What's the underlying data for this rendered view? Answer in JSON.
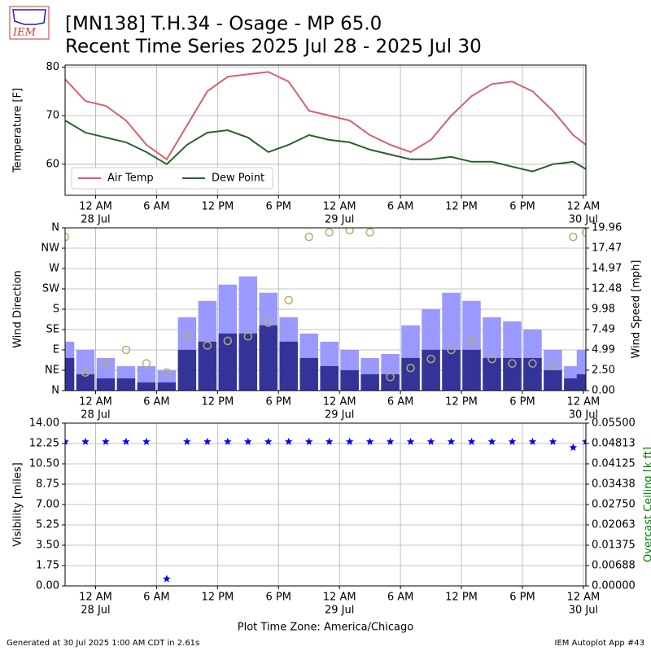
{
  "header": {
    "logo": "IEM",
    "title": [
      "[MN138] T.H.34 - Osage - MP 65.0",
      "Recent Time Series 2025 Jul 28 - 2025 Jul 30"
    ]
  },
  "footer": {
    "left": "Generated at 30 Jul 2025 1:00 AM CDT in 2.61s",
    "right": "IEM Autoplot App #43"
  },
  "chart_data": [
    {
      "type": "line",
      "ylabel": "Temperature [F]",
      "grid": true,
      "legend": "lower left",
      "xlim": [
        "2025-07-27T21:00",
        "2025-07-30T00:15"
      ],
      "xticks": [
        {
          "value": "2025-07-28T00:00",
          "label": "12 AM",
          "sublabel": "28 Jul"
        },
        {
          "value": "2025-07-28T06:00",
          "label": "6 AM"
        },
        {
          "value": "2025-07-28T12:00",
          "label": "12 PM"
        },
        {
          "value": "2025-07-28T18:00",
          "label": "6 PM"
        },
        {
          "value": "2025-07-29T00:00",
          "label": "12 AM",
          "sublabel": "29 Jul"
        },
        {
          "value": "2025-07-29T06:00",
          "label": "6 AM"
        },
        {
          "value": "2025-07-29T12:00",
          "label": "12 PM"
        },
        {
          "value": "2025-07-29T18:00",
          "label": "6 PM"
        },
        {
          "value": "2025-07-30T00:00",
          "label": "12 AM",
          "sublabel": "30 Jul"
        }
      ],
      "ylim": [
        53.6,
        80.4
      ],
      "yticks": [
        60,
        70,
        80
      ],
      "x": [
        "2025-07-27T21:00",
        "2025-07-27T23:00",
        "2025-07-28T01:00",
        "2025-07-28T03:00",
        "2025-07-28T05:00",
        "2025-07-28T07:00",
        "2025-07-28T09:00",
        "2025-07-28T11:00",
        "2025-07-28T13:00",
        "2025-07-28T15:00",
        "2025-07-28T17:00",
        "2025-07-28T19:00",
        "2025-07-28T21:00",
        "2025-07-28T23:00",
        "2025-07-29T01:00",
        "2025-07-29T03:00",
        "2025-07-29T05:00",
        "2025-07-29T07:00",
        "2025-07-29T09:00",
        "2025-07-29T11:00",
        "2025-07-29T13:00",
        "2025-07-29T15:00",
        "2025-07-29T17:00",
        "2025-07-29T19:00",
        "2025-07-29T21:00",
        "2025-07-29T23:00",
        "2025-07-30T00:15"
      ],
      "series": [
        {
          "name": "Air Temp",
          "color": "#d9606a",
          "values": [
            77.5,
            73,
            72,
            69,
            64,
            61,
            68,
            75,
            78,
            78.5,
            79,
            77,
            71,
            70,
            69,
            66,
            64,
            62.5,
            65,
            70,
            74,
            76.5,
            77,
            75,
            71,
            66,
            64
          ]
        },
        {
          "name": "Dew Point",
          "color": "#2d5e2d",
          "values": [
            69,
            66.5,
            65.5,
            64.5,
            62.5,
            60,
            64,
            66.5,
            67,
            65.5,
            62.5,
            64,
            66,
            65,
            64.5,
            63,
            62,
            61,
            61,
            61.5,
            60.5,
            60.5,
            59.5,
            58.5,
            60,
            60.5,
            59
          ]
        }
      ]
    },
    {
      "type": "combo",
      "ylabel": "Wind Direction",
      "y2label": "Wind Speed [mph]",
      "grid": true,
      "xlim": [
        "2025-07-27T21:00",
        "2025-07-30T00:15"
      ],
      "xticks": [
        {
          "value": "2025-07-28T00:00",
          "label": "12 AM",
          "sublabel": "28 Jul"
        },
        {
          "value": "2025-07-28T06:00",
          "label": "6 AM"
        },
        {
          "value": "2025-07-28T12:00",
          "label": "12 PM"
        },
        {
          "value": "2025-07-28T18:00",
          "label": "6 PM"
        },
        {
          "value": "2025-07-29T00:00",
          "label": "12 AM",
          "sublabel": "29 Jul"
        },
        {
          "value": "2025-07-29T06:00",
          "label": "6 AM"
        },
        {
          "value": "2025-07-29T12:00",
          "label": "12 PM"
        },
        {
          "value": "2025-07-29T18:00",
          "label": "6 PM"
        },
        {
          "value": "2025-07-30T00:00",
          "label": "12 AM",
          "sublabel": "30 Jul"
        }
      ],
      "ylim": [
        0,
        360
      ],
      "yticks": [
        {
          "value": 0,
          "label": "N"
        },
        {
          "value": 45,
          "label": "NE"
        },
        {
          "value": 90,
          "label": "E"
        },
        {
          "value": 135,
          "label": "SE"
        },
        {
          "value": 180,
          "label": "S"
        },
        {
          "value": 225,
          "label": "SW"
        },
        {
          "value": 270,
          "label": "W"
        },
        {
          "value": 315,
          "label": "NW"
        },
        {
          "value": 360,
          "label": "N"
        }
      ],
      "y2lim": [
        0,
        19.96
      ],
      "y2ticks": [
        {
          "value": 0,
          "label": "0.00"
        },
        {
          "value": 2.5,
          "label": "2.50"
        },
        {
          "value": 4.99,
          "label": "4.99"
        },
        {
          "value": 7.49,
          "label": "7.49"
        },
        {
          "value": 9.98,
          "label": "9.98"
        },
        {
          "value": 12.48,
          "label": "12.48"
        },
        {
          "value": 14.97,
          "label": "14.97"
        },
        {
          "value": 17.47,
          "label": "17.47"
        },
        {
          "value": 19.96,
          "label": "19.96"
        }
      ],
      "x": [
        "2025-07-27T21:00",
        "2025-07-27T23:00",
        "2025-07-28T01:00",
        "2025-07-28T03:00",
        "2025-07-28T05:00",
        "2025-07-28T07:00",
        "2025-07-28T09:00",
        "2025-07-28T11:00",
        "2025-07-28T13:00",
        "2025-07-28T15:00",
        "2025-07-28T17:00",
        "2025-07-28T19:00",
        "2025-07-28T21:00",
        "2025-07-28T23:00",
        "2025-07-29T01:00",
        "2025-07-29T03:00",
        "2025-07-29T05:00",
        "2025-07-29T07:00",
        "2025-07-29T09:00",
        "2025-07-29T11:00",
        "2025-07-29T13:00",
        "2025-07-29T15:00",
        "2025-07-29T17:00",
        "2025-07-29T19:00",
        "2025-07-29T21:00",
        "2025-07-29T23:00",
        "2025-07-30T00:15"
      ],
      "series": [
        {
          "type": "bar",
          "axis": "y2",
          "color": "#9999ff",
          "values": [
            6,
            5,
            4,
            3,
            3,
            2.5,
            9,
            11,
            13,
            14,
            12,
            9,
            7,
            6,
            5,
            4,
            4.5,
            8,
            10,
            12,
            11,
            9,
            8.5,
            7.5,
            5,
            3,
            5
          ]
        },
        {
          "type": "bar",
          "axis": "y2",
          "color": "#333399",
          "values": [
            4,
            2,
            1.5,
            1.5,
            1,
            1,
            5,
            6,
            7,
            7,
            8,
            6,
            4,
            3,
            2.5,
            2,
            2,
            4,
            5,
            5,
            5,
            4,
            4,
            4,
            2.5,
            1.5,
            2
          ]
        },
        {
          "type": "scatter",
          "axis": "y",
          "color": "#b0b070",
          "values": [
            340,
            40,
            60,
            90,
            60,
            40,
            120,
            100,
            110,
            120,
            150,
            200,
            340,
            350,
            355,
            350,
            30,
            50,
            70,
            90,
            110,
            70,
            60,
            60,
            55,
            340,
            350
          ]
        }
      ]
    },
    {
      "type": "scatter",
      "marker": "star",
      "ylabel": "Visibility [miles]",
      "y2label": "Overcast Ceiling [k ft]",
      "y2label_color": "#008000",
      "xlabel": "Plot Time Zone: America/Chicago",
      "grid": true,
      "xlim": [
        "2025-07-27T21:00",
        "2025-07-30T00:15"
      ],
      "xticks": [
        {
          "value": "2025-07-28T00:00",
          "label": "12 AM",
          "sublabel": "28 Jul"
        },
        {
          "value": "2025-07-28T06:00",
          "label": "6 AM"
        },
        {
          "value": "2025-07-28T12:00",
          "label": "12 PM"
        },
        {
          "value": "2025-07-28T18:00",
          "label": "6 PM"
        },
        {
          "value": "2025-07-29T00:00",
          "label": "12 AM",
          "sublabel": "29 Jul"
        },
        {
          "value": "2025-07-29T06:00",
          "label": "6 AM"
        },
        {
          "value": "2025-07-29T12:00",
          "label": "12 PM"
        },
        {
          "value": "2025-07-29T18:00",
          "label": "6 PM"
        },
        {
          "value": "2025-07-30T00:00",
          "label": "12 AM",
          "sublabel": "30 Jul"
        }
      ],
      "ylim": [
        0,
        14
      ],
      "yticks": [
        {
          "value": 0,
          "label": "0.00"
        },
        {
          "value": 1.75,
          "label": "1.75"
        },
        {
          "value": 3.5,
          "label": "3.50"
        },
        {
          "value": 5.25,
          "label": "5.25"
        },
        {
          "value": 7,
          "label": "7.00"
        },
        {
          "value": 8.75,
          "label": "8.75"
        },
        {
          "value": 10.5,
          "label": "10.50"
        },
        {
          "value": 12.25,
          "label": "12.25"
        },
        {
          "value": 14,
          "label": "14.00"
        }
      ],
      "y2lim": [
        0,
        0.055
      ],
      "y2ticks": [
        {
          "value": 0,
          "label": "0.00000"
        },
        {
          "value": 0.00688,
          "label": "0.00688"
        },
        {
          "value": 0.01375,
          "label": "0.01375"
        },
        {
          "value": 0.02063,
          "label": "0.02063"
        },
        {
          "value": 0.0275,
          "label": "0.02750"
        },
        {
          "value": 0.03438,
          "label": "0.03438"
        },
        {
          "value": 0.04125,
          "label": "0.04125"
        },
        {
          "value": 0.04813,
          "label": "0.04813"
        },
        {
          "value": 0.055,
          "label": "0.05500"
        }
      ],
      "x": [
        "2025-07-27T21:00",
        "2025-07-27T23:00",
        "2025-07-28T01:00",
        "2025-07-28T03:00",
        "2025-07-28T05:00",
        "2025-07-28T07:00",
        "2025-07-28T09:00",
        "2025-07-28T11:00",
        "2025-07-28T13:00",
        "2025-07-28T15:00",
        "2025-07-28T17:00",
        "2025-07-28T19:00",
        "2025-07-28T21:00",
        "2025-07-28T23:00",
        "2025-07-29T01:00",
        "2025-07-29T03:00",
        "2025-07-29T05:00",
        "2025-07-29T07:00",
        "2025-07-29T09:00",
        "2025-07-29T11:00",
        "2025-07-29T13:00",
        "2025-07-29T15:00",
        "2025-07-29T17:00",
        "2025-07-29T19:00",
        "2025-07-29T21:00",
        "2025-07-29T23:00",
        "2025-07-30T00:15"
      ],
      "series": [
        {
          "color": "#0000ff",
          "values": [
            12.4,
            12.4,
            12.4,
            12.4,
            12.4,
            0.6,
            12.4,
            12.4,
            12.4,
            12.4,
            12.4,
            12.4,
            12.4,
            12.4,
            12.4,
            12.4,
            12.4,
            12.4,
            12.4,
            12.4,
            12.4,
            12.4,
            12.4,
            12.4,
            12.4,
            11.9,
            12.4
          ]
        }
      ]
    }
  ]
}
